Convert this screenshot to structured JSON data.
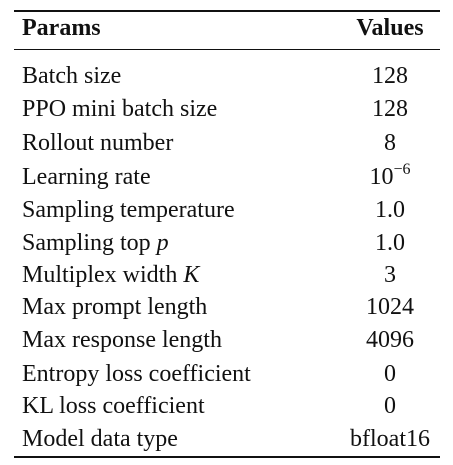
{
  "table": {
    "header": [
      "Params",
      "Values"
    ],
    "rows": [
      [
        {
          "text": "Batch size"
        },
        {
          "text": "128"
        }
      ],
      [
        {
          "text": "PPO mini batch size"
        },
        {
          "text": "128"
        }
      ],
      [
        {
          "text": "Rollout number"
        },
        {
          "text": "8"
        }
      ],
      [
        {
          "text": "Learning rate"
        },
        {
          "text": "10",
          "sup": "−6"
        }
      ],
      [
        {
          "text": "Sampling temperature"
        },
        {
          "text": "1.0"
        }
      ],
      [
        {
          "text": "Sampling top ",
          "math": "p"
        },
        {
          "text": "1.0"
        }
      ],
      [
        {
          "text": "Multiplex width ",
          "math": "K"
        },
        {
          "text": "3"
        }
      ],
      [
        {
          "text": "Max prompt length"
        },
        {
          "text": "1024"
        }
      ],
      [
        {
          "text": "Max response length"
        },
        {
          "text": "4096"
        }
      ],
      [
        {
          "text": "Entropy loss coefficient"
        },
        {
          "text": "0"
        }
      ],
      [
        {
          "text": "KL loss coefficient"
        },
        {
          "text": "0"
        }
      ],
      [
        {
          "text": "Model data type"
        },
        {
          "text": "bfloat16"
        }
      ]
    ]
  }
}
